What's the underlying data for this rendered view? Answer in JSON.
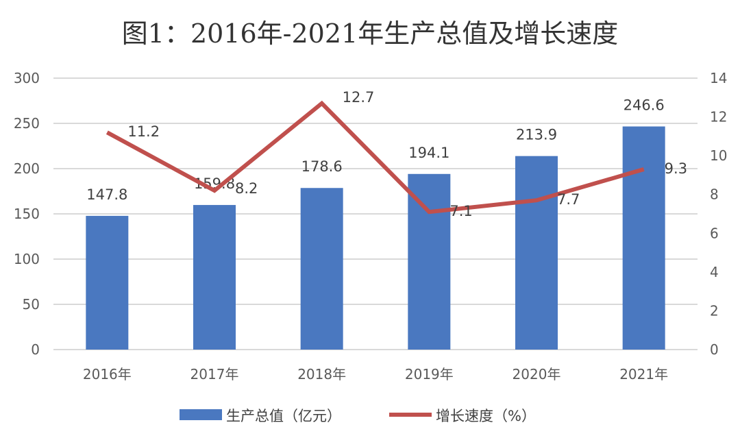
{
  "chart_data": {
    "type": "bar+line",
    "title": "图1：2016年-2021年生产总值及增长速度",
    "categories": [
      "2016年",
      "2017年",
      "2018年",
      "2019年",
      "2020年",
      "2021年"
    ],
    "series": [
      {
        "name": "生产总值（亿元）",
        "type": "bar",
        "axis": "left",
        "values": [
          147.8,
          159.8,
          178.6,
          194.1,
          213.9,
          246.6
        ],
        "labels": [
          "147.8",
          "159.8",
          "178.6",
          "194.1",
          "213.9",
          "246.6"
        ],
        "color": "#4a78c0"
      },
      {
        "name": "增长速度（%）",
        "type": "line",
        "axis": "right",
        "values": [
          11.2,
          8.2,
          12.7,
          7.1,
          7.7,
          9.3
        ],
        "labels": [
          "11.2",
          "8.2",
          "12.7",
          "7.1",
          "7.7",
          "9.3"
        ],
        "color": "#c0504d"
      }
    ],
    "y_left": {
      "range": [
        0,
        300
      ],
      "ticks": [
        "0",
        "50",
        "100",
        "150",
        "200",
        "250",
        "300"
      ]
    },
    "y_right": {
      "range": [
        0,
        14
      ],
      "ticks": [
        "0",
        "2",
        "4",
        "6",
        "8",
        "10",
        "12",
        "14"
      ]
    },
    "grid": true,
    "legend_placement": "bottom"
  }
}
